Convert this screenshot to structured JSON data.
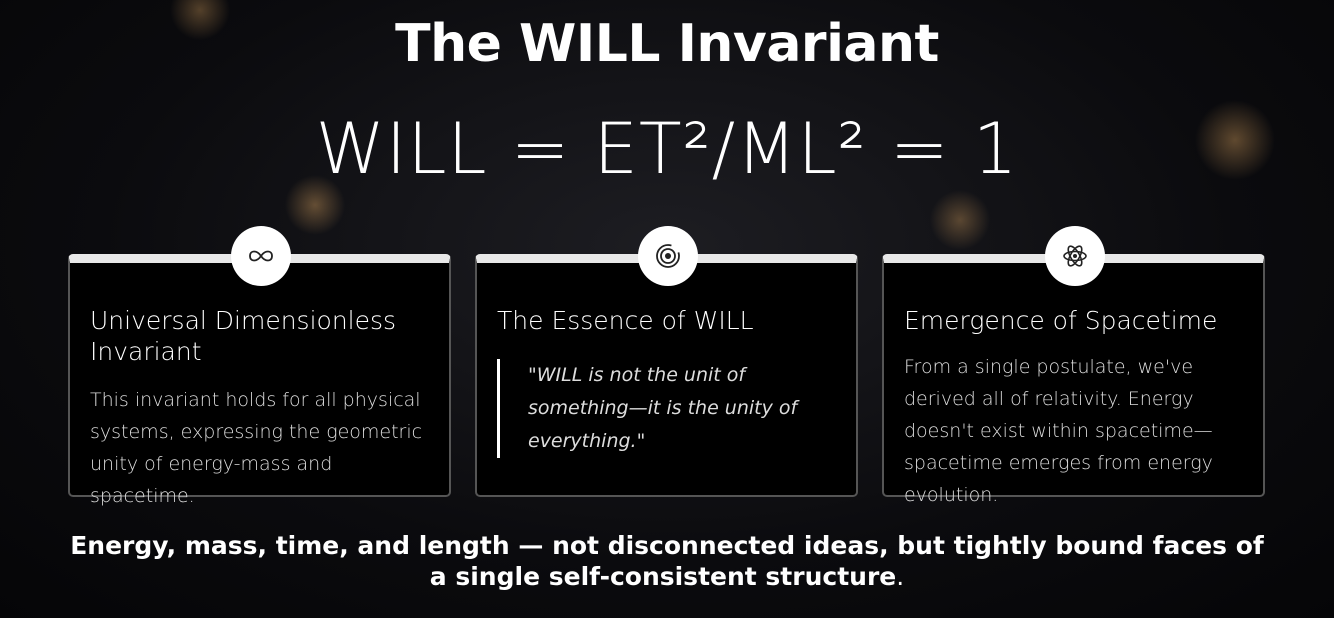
{
  "header": {
    "title": "The WILL Invariant",
    "formula": "WILL = ET²/ML² = 1"
  },
  "cards": [
    {
      "title": "Universal Dimensionless Invariant",
      "body": "This invariant holds for all physical systems, expressing the geometric unity of energy-mass and spacetime."
    },
    {
      "title": "The Essence of WILL",
      "quote": "\"WILL is not the unit of something—it is the unity of everything.\""
    },
    {
      "title": "Emergence of Spacetime",
      "body": "From a single postulate, we've derived all of relativity. Energy doesn't exist within spacetime—spacetime emerges from energy evolution."
    }
  ],
  "footer": {
    "text": "Energy, mass, time, and length — not disconnected ideas, but tightly bound faces of a single self-consistent structure",
    "end": "."
  }
}
